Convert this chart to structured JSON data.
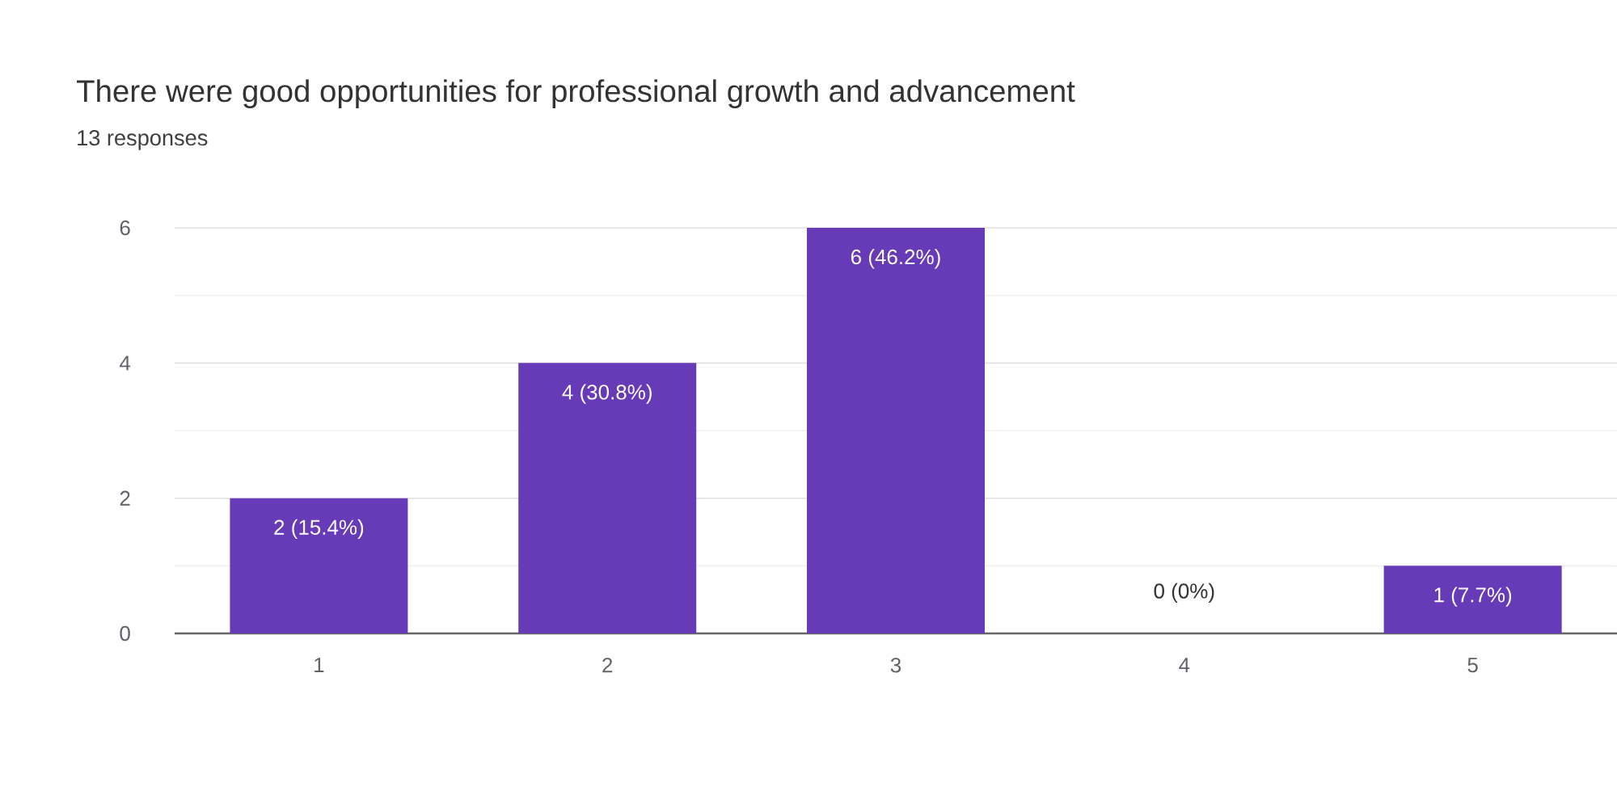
{
  "chart_data": {
    "type": "bar",
    "title": "There were good opportunities for professional growth and advancement",
    "subtitle": "13 responses",
    "categories": [
      "1",
      "2",
      "3",
      "4",
      "5"
    ],
    "values": [
      2,
      4,
      6,
      0,
      1
    ],
    "value_labels": [
      "2 (15.4%)",
      "4 (30.8%)",
      "6 (46.2%)",
      "0 (0%)",
      "1 (7.7%)"
    ],
    "color": "#673ab7",
    "ylim": [
      0,
      6
    ],
    "yticks": [
      0,
      2,
      4,
      6
    ],
    "grid": "y"
  }
}
